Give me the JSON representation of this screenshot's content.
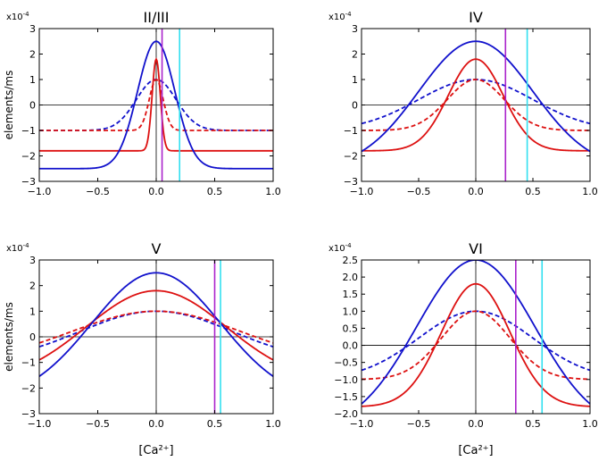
{
  "chart_data": [
    {
      "type": "line",
      "title": "II/III",
      "ylabel": "elements/ms",
      "xlabel": "",
      "multiplier": "x10",
      "multiplier_exp": "-4",
      "xlim": [
        -1.0,
        1.0
      ],
      "ylim": [
        -3,
        3
      ],
      "xticks": [
        -1.0,
        -0.5,
        0.0,
        0.5,
        1.0
      ],
      "xtick_labels": [
        "−1.0",
        "−0.5",
        "0.0",
        "0.5",
        "1.0"
      ],
      "yticks": [
        -3,
        -2,
        -1,
        0,
        1,
        2,
        3
      ],
      "ytick_labels": [
        "−3",
        "−2",
        "−1",
        "0",
        "1",
        "2",
        "3"
      ],
      "vlines": [
        {
          "x": 0.05,
          "color": "#aa22cc"
        },
        {
          "x": 0.2,
          "color": "#33e0f0"
        }
      ],
      "series": [
        {
          "name": "blue solid",
          "color": "#1111cc",
          "style": "solid",
          "baseline": -2.5,
          "peak": 2.5,
          "width": 0.16
        },
        {
          "name": "red solid",
          "color": "#dd1111",
          "style": "solid",
          "baseline": -1.8,
          "peak": 1.8,
          "width": 0.035
        },
        {
          "name": "blue dashed",
          "color": "#1111cc",
          "style": "dashed",
          "baseline": -1.0,
          "peak": 1.0,
          "width": 0.17
        },
        {
          "name": "red dashed",
          "color": "#dd1111",
          "style": "dashed",
          "baseline": -1.0,
          "peak": 1.0,
          "width": 0.06
        }
      ]
    },
    {
      "type": "line",
      "title": "IV",
      "ylabel": "",
      "xlabel": "",
      "multiplier": "x10",
      "multiplier_exp": "-4",
      "xlim": [
        -1.0,
        1.0
      ],
      "ylim": [
        -3,
        3
      ],
      "xticks": [
        -1.0,
        -0.5,
        0.0,
        0.5,
        1.0
      ],
      "xtick_labels": [
        "−1.0",
        "−0.5",
        "0.0",
        "0.5",
        "1.0"
      ],
      "yticks": [
        -3,
        -2,
        -1,
        0,
        1,
        2,
        3
      ],
      "ytick_labels": [
        "−3",
        "−2",
        "−1",
        "0",
        "1",
        "2",
        "3"
      ],
      "vlines": [
        {
          "x": 0.26,
          "color": "#aa22cc"
        },
        {
          "x": 0.45,
          "color": "#33e0f0"
        }
      ],
      "series": [
        {
          "name": "blue solid",
          "color": "#1111cc",
          "style": "solid",
          "baseline": -2.5,
          "peak": 2.5,
          "width": 0.5
        },
        {
          "name": "red solid",
          "color": "#dd1111",
          "style": "solid",
          "baseline": -1.8,
          "peak": 1.8,
          "width": 0.24
        },
        {
          "name": "blue dashed",
          "color": "#1111cc",
          "style": "dashed",
          "baseline": -1.0,
          "peak": 1.0,
          "width": 0.5
        },
        {
          "name": "red dashed",
          "color": "#dd1111",
          "style": "dashed",
          "baseline": -1.0,
          "peak": 1.0,
          "width": 0.25
        }
      ]
    },
    {
      "type": "line",
      "title": "V",
      "ylabel": "elements/ms",
      "xlabel": "[Ca²⁺]",
      "multiplier": "x10",
      "multiplier_exp": "-4",
      "xlim": [
        -1.0,
        1.0
      ],
      "ylim": [
        -3,
        3
      ],
      "xticks": [
        -1.0,
        -0.5,
        0.0,
        0.5,
        1.0
      ],
      "xtick_labels": [
        "−1.0",
        "−0.5",
        "0.0",
        "0.5",
        "1.0"
      ],
      "yticks": [
        -3,
        -2,
        -1,
        0,
        1,
        2,
        3
      ],
      "ytick_labels": [
        "−3",
        "−2",
        "−1",
        "0",
        "1",
        "2",
        "3"
      ],
      "vlines": [
        {
          "x": 0.5,
          "color": "#aa22cc"
        },
        {
          "x": 0.55,
          "color": "#33e0f0"
        }
      ],
      "series": [
        {
          "name": "blue solid",
          "color": "#1111cc",
          "style": "solid",
          "baseline": -2.5,
          "peak": 2.5,
          "width": 0.55
        },
        {
          "name": "red solid",
          "color": "#dd1111",
          "style": "solid",
          "baseline": -1.8,
          "peak": 1.8,
          "width": 0.6
        },
        {
          "name": "blue dashed",
          "color": "#1111cc",
          "style": "dashed",
          "baseline": -1.0,
          "peak": 1.0,
          "width": 0.65
        },
        {
          "name": "red dashed",
          "color": "#dd1111",
          "style": "dashed",
          "baseline": -1.0,
          "peak": 1.0,
          "width": 0.72
        }
      ]
    },
    {
      "type": "line",
      "title": "VI",
      "ylabel": "",
      "xlabel": "[Ca²⁺]",
      "multiplier": "x10",
      "multiplier_exp": "-4",
      "xlim": [
        -1.0,
        1.0
      ],
      "ylim": [
        -2.0,
        2.5
      ],
      "xticks": [
        -1.0,
        -0.5,
        0.0,
        0.5,
        1.0
      ],
      "xtick_labels": [
        "−1.0",
        "−0.5",
        "0.0",
        "0.5",
        "1.0"
      ],
      "yticks": [
        -2.0,
        -1.5,
        -1.0,
        -0.5,
        0.0,
        0.5,
        1.0,
        1.5,
        2.0,
        2.5
      ],
      "ytick_labels": [
        "−2.0",
        "−1.5",
        "−1.0",
        "−0.5",
        "0.0",
        "0.5",
        "1.0",
        "1.5",
        "2.0",
        "2.5"
      ],
      "vlines": [
        {
          "x": 0.35,
          "color": "#aa22cc"
        },
        {
          "x": 0.58,
          "color": "#33e0f0"
        }
      ],
      "series": [
        {
          "name": "blue solid",
          "color": "#1111cc",
          "style": "solid",
          "baseline": -2.5,
          "peak": 2.5,
          "width": 0.52
        },
        {
          "name": "red solid",
          "color": "#dd1111",
          "style": "solid",
          "baseline": -1.8,
          "peak": 1.8,
          "width": 0.3
        },
        {
          "name": "blue dashed",
          "color": "#1111cc",
          "style": "dashed",
          "baseline": -1.0,
          "peak": 1.0,
          "width": 0.5
        },
        {
          "name": "red dashed",
          "color": "#dd1111",
          "style": "dashed",
          "baseline": -1.0,
          "peak": 1.0,
          "width": 0.3
        }
      ]
    }
  ]
}
